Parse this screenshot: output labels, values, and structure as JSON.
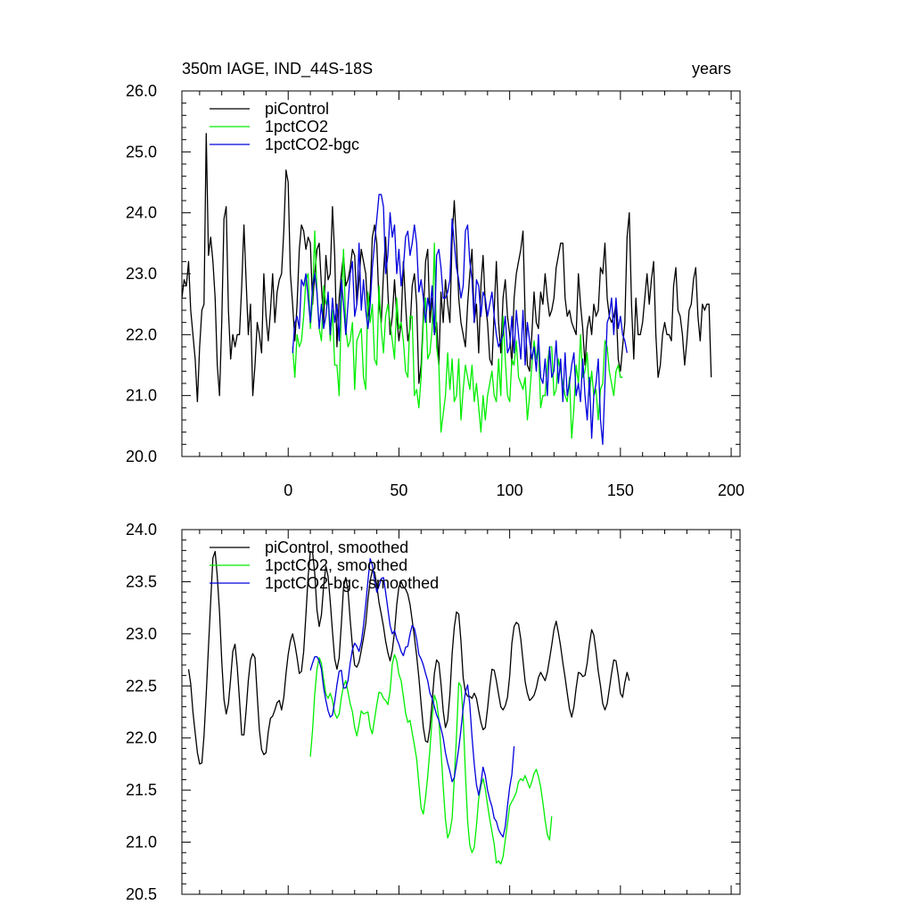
{
  "header": {
    "title": "350m IAGE, IND_44S-18S",
    "units": "years"
  },
  "colors": {
    "piControl": "#000000",
    "1pctCO2": "#00ee00",
    "1pctCO2-bgc": "#0000dd"
  },
  "chart_data": [
    {
      "type": "line",
      "xlim": [
        -48,
        204
      ],
      "ylim": [
        20.0,
        26.0
      ],
      "x_ticks": [
        "0",
        "50",
        "100",
        "150",
        "200"
      ],
      "y_ticks": [
        "20.0",
        "21.0",
        "22.0",
        "23.0",
        "24.0",
        "25.0",
        "26.0"
      ],
      "legend": [
        "piControl",
        "1pctCO2",
        "1pctCO2-bgc"
      ],
      "legend_position": "top-left",
      "series": [
        {
          "name": "piControl",
          "x_start": -48,
          "values": [
            22.6,
            22.9,
            22.8,
            23.2,
            22.4,
            22.0,
            21.6,
            20.9,
            21.8,
            22.4,
            22.5,
            25.3,
            23.3,
            23.6,
            23.2,
            22.6,
            21.5,
            21.0,
            22.2,
            23.9,
            24.1,
            22.4,
            21.6,
            22.0,
            21.8,
            22.0,
            22.0,
            22.8,
            23.8,
            22.9,
            22.0,
            22.5,
            21.0,
            21.5,
            22.2,
            22.0,
            21.7,
            23.0,
            22.3,
            21.9,
            22.4,
            23.0,
            22.2,
            22.7,
            22.9,
            23.0,
            23.7,
            24.7,
            24.5,
            23.0,
            22.5,
            21.9,
            22.5,
            23.4,
            23.8,
            23.7,
            23.4,
            23.6,
            23.5,
            22.5,
            23.0,
            23.4,
            23.5,
            22.8,
            22.2,
            23.3,
            22.9,
            23.0,
            24.1,
            23.3,
            21.8,
            22.6,
            23.0,
            23.3,
            22.8,
            22.9,
            23.1,
            23.4,
            23.3,
            22.5,
            22.9,
            23.4,
            23.2,
            23.0,
            22.3,
            22.7,
            23.6,
            23.8,
            23.5,
            22.5,
            22.2,
            23.0,
            23.6,
            22.7,
            22.0,
            22.3,
            22.9,
            22.3,
            21.9,
            22.2,
            23.2,
            22.5,
            21.9,
            22.1,
            22.8,
            23.0,
            22.5,
            21.2,
            21.5,
            22.3,
            23.2,
            23.4,
            22.2,
            22.6,
            22.0,
            22.2,
            21.5,
            22.7,
            22.2,
            22.9,
            22.5,
            22.2,
            23.6,
            24.2,
            23.5,
            22.6,
            22.2,
            22.0,
            21.8,
            22.5,
            23.0,
            23.4,
            22.2,
            22.5,
            21.7,
            22.8,
            23.3,
            22.5,
            22.2,
            21.6,
            21.5,
            22.4,
            23.2,
            22.2,
            21.7,
            22.6,
            22.9,
            22.3,
            22.0,
            21.5,
            22.6,
            23.0,
            23.2,
            23.4,
            23.7,
            22.3,
            21.5,
            21.4,
            22.0,
            22.7,
            22.2,
            22.1,
            22.7,
            22.5,
            23.0,
            22.6,
            22.3,
            22.4,
            22.6,
            23.1,
            23.3,
            23.5,
            23.5,
            22.6,
            22.3,
            22.4,
            22.2,
            22.1,
            22.0,
            23.0,
            22.5,
            22.1,
            21.5,
            22.1,
            22.3,
            22.0,
            22.5,
            22.3,
            22.4,
            23.1,
            23.0,
            23.5,
            22.6,
            22.3,
            22.2,
            22.3,
            22.5,
            21.6,
            21.4,
            21.8,
            22.2,
            23.6,
            24.0,
            22.5,
            21.6,
            22.6,
            22.0,
            22.0,
            22.2,
            22.6,
            23.0,
            22.5,
            22.9,
            23.2,
            22.0,
            21.3,
            21.5,
            22.0,
            22.2,
            22.0,
            22.0,
            21.9,
            22.8,
            23.1,
            22.4,
            22.3,
            22.0,
            21.5,
            21.9,
            22.4,
            22.5,
            22.9,
            23.1,
            22.3,
            21.9,
            22.5,
            22.4,
            22.5,
            22.5,
            21.3
          ]
        },
        {
          "name": "1pctCO2",
          "x_start": 2,
          "values": [
            21.8,
            21.3,
            22.0,
            21.8,
            21.9,
            22.3,
            22.9,
            23.0,
            22.1,
            22.6,
            23.7,
            22.7,
            22.1,
            21.9,
            22.8,
            22.5,
            22.6,
            21.9,
            22.4,
            21.5,
            21.5,
            21.0,
            22.5,
            23.4,
            22.1,
            21.8,
            21.9,
            22.2,
            21.1,
            21.9,
            22.0,
            22.1,
            21.3,
            21.1,
            22.7,
            22.2,
            22.5,
            21.6,
            21.5,
            22.8,
            22.1,
            21.7,
            22.3,
            22.5,
            22.2,
            21.9,
            21.6,
            22.6,
            22.1,
            22.2,
            21.9,
            21.4,
            21.3,
            22.3,
            22.3,
            21.0,
            21.1,
            20.8,
            21.3,
            22.2,
            22.6,
            21.6,
            21.7,
            22.1,
            23.5,
            21.8,
            21.5,
            20.4,
            20.7,
            21.0,
            21.7,
            21.1,
            21.6,
            20.9,
            21.0,
            21.6,
            20.6,
            21.1,
            21.5,
            21.3,
            21.1,
            21.5,
            20.9,
            21.2,
            20.8,
            20.4,
            21.0,
            20.6,
            21.0,
            21.2,
            21.4,
            21.0,
            20.9,
            21.6,
            21.0,
            22.3,
            21.6,
            21.0,
            20.9,
            21.6,
            21.5,
            21.9,
            21.3,
            21.2,
            21.1,
            21.3,
            20.6,
            21.0,
            21.5,
            21.9,
            21.6,
            21.8,
            20.8,
            21.0,
            21.0,
            21.5,
            21.8,
            21.8,
            21.0,
            21.1,
            21.6,
            21.4,
            21.2,
            21.0,
            20.9,
            21.3,
            20.3,
            20.8,
            21.5,
            21.2,
            22.0,
            21.3,
            21.4,
            21.7,
            21.0,
            21.4,
            21.0,
            21.1,
            20.6,
            21.1,
            21.2,
            21.9,
            21.8,
            21.4,
            21.2,
            21.0,
            21.4,
            21.5,
            21.3,
            21.3
          ]
        },
        {
          "name": "1pctCO2-bgc",
          "x_start": 2,
          "values": [
            21.7,
            22.2,
            22.3,
            22.1,
            22.9,
            22.8,
            23.0,
            22.6,
            22.2,
            22.8,
            23.0,
            22.7,
            22.1,
            22.5,
            22.1,
            22.3,
            22.7,
            22.0,
            22.6,
            22.2,
            22.5,
            21.9,
            22.9,
            22.5,
            22.0,
            22.5,
            23.0,
            23.2,
            22.3,
            22.5,
            23.5,
            22.4,
            22.9,
            22.4,
            22.1,
            22.5,
            23.1,
            23.5,
            23.9,
            24.3,
            24.3,
            24.1,
            23.0,
            23.3,
            24.0,
            23.6,
            23.8,
            23.0,
            23.4,
            22.8,
            23.1,
            23.6,
            23.7,
            23.3,
            23.5,
            23.8,
            23.5,
            22.7,
            22.9,
            22.6,
            22.2,
            22.6,
            22.4,
            22.8,
            22.0,
            23.3,
            23.4,
            23.1,
            22.6,
            22.6,
            22.7,
            22.9,
            23.9,
            23.5,
            23.1,
            22.9,
            22.6,
            22.8,
            23.7,
            23.8,
            23.2,
            22.9,
            22.2,
            22.9,
            22.8,
            22.3,
            22.7,
            22.6,
            22.3,
            22.5,
            22.7,
            22.3,
            22.0,
            21.8,
            21.9,
            22.0,
            22.3,
            21.7,
            21.8,
            22.3,
            21.7,
            22.4,
            22.0,
            21.6,
            22.4,
            21.5,
            22.2,
            21.9,
            21.6,
            21.8,
            21.4,
            22.0,
            21.3,
            21.2,
            21.6,
            21.0,
            21.8,
            21.3,
            21.4,
            21.9,
            21.2,
            21.6,
            20.9,
            21.7,
            21.0,
            21.2,
            21.5,
            21.7,
            21.0,
            21.2,
            20.9,
            21.6,
            21.0,
            20.6,
            21.3,
            20.3,
            21.0,
            21.2,
            21.6,
            20.6,
            20.2,
            21.2,
            22.2,
            22.3,
            22.6,
            22.0,
            22.6,
            22.1,
            22.3,
            22.0,
            21.9,
            21.7
          ]
        }
      ]
    },
    {
      "type": "line",
      "xlim": [
        -48,
        204
      ],
      "ylim": [
        20.5,
        24.0
      ],
      "y_ticks": [
        "20.5",
        "21.0",
        "21.5",
        "22.0",
        "22.5",
        "23.0",
        "23.5",
        "24.0"
      ],
      "legend": [
        "piControl, smoothed",
        "1pctCO2, smoothed",
        "1pctCO2-bgc, smoothed"
      ],
      "legend_position": "top-left",
      "series": [
        {
          "name": "piControl, smoothed",
          "x_start": -45,
          "values": [
            22.66,
            22.52,
            22.25,
            22.05,
            21.86,
            21.75,
            21.76,
            22.02,
            22.42,
            22.87,
            23.31,
            23.73,
            23.79,
            23.55,
            23.21,
            22.74,
            22.37,
            22.23,
            22.33,
            22.57,
            22.83,
            22.9,
            22.68,
            22.37,
            22.03,
            22.03,
            22.26,
            22.55,
            22.75,
            22.81,
            22.77,
            22.41,
            22.08,
            21.89,
            21.84,
            21.86,
            22.06,
            22.19,
            22.21,
            22.27,
            22.34,
            22.36,
            22.27,
            22.39,
            22.62,
            22.8,
            22.93,
            23.0,
            22.9,
            22.77,
            22.62,
            22.64,
            22.83,
            23.18,
            23.55,
            23.79,
            23.78,
            23.58,
            23.23,
            23.07,
            23.18,
            23.46,
            23.65,
            23.55,
            23.31,
            23.02,
            22.76,
            22.66,
            22.77,
            23.1,
            23.45,
            23.54,
            23.42,
            23.13,
            22.88,
            22.7,
            22.68,
            22.73,
            22.84,
            22.96,
            23.1,
            23.33,
            23.51,
            23.61,
            23.59,
            23.47,
            23.3,
            23.19,
            23.07,
            22.93,
            22.82,
            22.74,
            22.84,
            23.02,
            23.28,
            23.45,
            23.5,
            23.45,
            23.43,
            23.38,
            23.28,
            23.13,
            22.97,
            22.79,
            22.58,
            22.33,
            22.1,
            21.97,
            21.96,
            22.1,
            22.35,
            22.62,
            22.75,
            22.72,
            22.52,
            22.26,
            22.1,
            22.17,
            22.42,
            22.81,
            23.06,
            23.21,
            23.19,
            22.93,
            22.58,
            22.44,
            22.4,
            22.4,
            22.38,
            22.43,
            22.38,
            22.26,
            22.15,
            22.08,
            22.1,
            22.28,
            22.49,
            22.66,
            22.65,
            22.55,
            22.42,
            22.3,
            22.27,
            22.31,
            22.39,
            22.6,
            22.91,
            23.07,
            23.11,
            23.09,
            22.95,
            22.74,
            22.54,
            22.43,
            22.36,
            22.38,
            22.41,
            22.48,
            22.58,
            22.63,
            22.59,
            22.55,
            22.63,
            22.76,
            22.89,
            23.04,
            23.12,
            23.01,
            22.88,
            22.72,
            22.58,
            22.43,
            22.28,
            22.2,
            22.3,
            22.48,
            22.63,
            22.62,
            22.59,
            22.6,
            22.72,
            22.9,
            23.04,
            22.99,
            22.83,
            22.64,
            22.5,
            22.33,
            22.27,
            22.33,
            22.47,
            22.62,
            22.75,
            22.74,
            22.6,
            22.43,
            22.39,
            22.53,
            22.63,
            22.55
          ]
        },
        {
          "name": "1pctCO2, smoothed",
          "x_start": 10,
          "values": [
            21.82,
            22.08,
            22.42,
            22.66,
            22.77,
            22.72,
            22.56,
            22.42,
            22.38,
            22.43,
            22.36,
            22.24,
            22.19,
            22.23,
            22.39,
            22.5,
            22.55,
            22.44,
            22.33,
            22.25,
            22.1,
            22.02,
            22.13,
            22.26,
            22.23,
            22.24,
            22.25,
            22.1,
            22.04,
            22.18,
            22.32,
            22.44,
            22.43,
            22.38,
            22.36,
            22.32,
            22.45,
            22.71,
            22.8,
            22.74,
            22.61,
            22.55,
            22.4,
            22.24,
            22.15,
            22.17,
            22.05,
            21.93,
            21.8,
            21.56,
            21.33,
            21.27,
            21.43,
            21.63,
            21.89,
            22.2,
            22.41,
            22.35,
            22.18,
            21.88,
            21.53,
            21.22,
            21.04,
            21.1,
            21.23,
            21.61,
            22.02,
            22.53,
            22.5,
            22.2,
            21.66,
            21.2,
            20.97,
            20.9,
            20.95,
            21.16,
            21.42,
            21.54,
            21.61,
            21.51,
            21.36,
            21.22,
            21.1,
            20.98,
            20.8,
            20.82,
            20.79,
            20.86,
            21.02,
            21.18,
            21.35,
            21.39,
            21.43,
            21.48,
            21.58,
            21.61,
            21.59,
            21.64,
            21.58,
            21.52,
            21.58,
            21.66,
            21.7,
            21.63,
            21.53,
            21.38,
            21.21,
            21.07,
            21.02,
            21.25
          ]
        },
        {
          "name": "1pctCO2-bgc, smoothed",
          "x_start": 10,
          "values": [
            22.65,
            22.72,
            22.78,
            22.78,
            22.74,
            22.66,
            22.48,
            22.36,
            22.26,
            22.2,
            22.22,
            22.35,
            22.51,
            22.64,
            22.65,
            22.48,
            22.48,
            22.55,
            22.72,
            22.85,
            22.91,
            22.88,
            22.83,
            22.92,
            23.08,
            23.28,
            23.51,
            23.72,
            23.66,
            23.52,
            23.4,
            23.46,
            23.53,
            23.54,
            23.4,
            23.24,
            23.08,
            23.0,
            23.03,
            22.95,
            22.9,
            22.83,
            22.79,
            22.87,
            22.88,
            23.0,
            23.08,
            23.05,
            22.95,
            22.8,
            22.76,
            22.7,
            22.62,
            22.55,
            22.43,
            22.38,
            22.3,
            22.22,
            22.17,
            22.09,
            22.0,
            21.86,
            21.76,
            21.68,
            21.58,
            21.62,
            21.75,
            21.9,
            22.08,
            22.29,
            22.44,
            22.51,
            22.32,
            22.01,
            21.75,
            21.55,
            21.45,
            21.57,
            21.72,
            21.64,
            21.5,
            21.41,
            21.34,
            21.23,
            21.2,
            21.12,
            21.08,
            21.05,
            21.15,
            21.35,
            21.53,
            21.65,
            21.92
          ]
        }
      ]
    }
  ]
}
